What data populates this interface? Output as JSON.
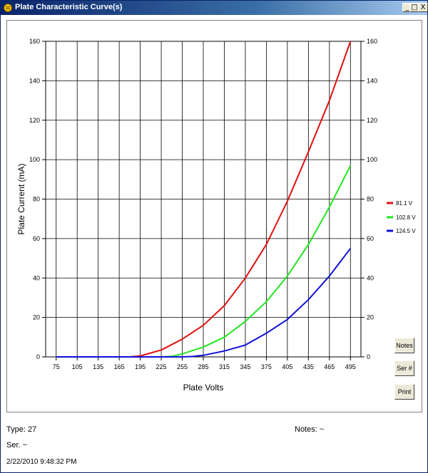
{
  "window": {
    "title": "Plate Characteristic Curve(s)",
    "controls": {
      "minimize": "_",
      "maximize": "□",
      "close": "X"
    }
  },
  "buttons": {
    "notes": "Notes",
    "serial": "Ser #",
    "print": "Print"
  },
  "info": {
    "type": "Type: 27",
    "serial": "Ser. ~",
    "timestamp": "2/22/2010  9:48:32 PM",
    "notes": "Notes: ~"
  },
  "chart_data": {
    "type": "line",
    "title": "",
    "xlabel": "Plate Volts",
    "ylabel": "Plate Current (mA)",
    "xlim": [
      60,
      510
    ],
    "ylim": [
      0,
      160
    ],
    "x_ticks": [
      75,
      105,
      135,
      165,
      195,
      225,
      255,
      285,
      315,
      345,
      375,
      405,
      435,
      465,
      495
    ],
    "y_ticks": [
      0,
      20,
      40,
      60,
      80,
      100,
      120,
      140,
      160
    ],
    "grid": true,
    "legend_position": "right",
    "series": [
      {
        "name": "81.1 V",
        "color": "#e01010",
        "x": [
          75,
          105,
          135,
          165,
          180,
          195,
          210,
          225,
          255,
          285,
          315,
          345,
          375,
          405,
          435,
          465,
          495
        ],
        "y": [
          0,
          0,
          0,
          0,
          0,
          0.5,
          2,
          3.5,
          9,
          16,
          26,
          40,
          57,
          79,
          104,
          130,
          160
        ]
      },
      {
        "name": "102.8 V",
        "color": "#22e622",
        "x": [
          75,
          105,
          135,
          165,
          195,
          225,
          240,
          255,
          285,
          315,
          345,
          375,
          405,
          435,
          465,
          495
        ],
        "y": [
          0,
          0,
          0,
          0,
          0,
          0,
          0.3,
          1.5,
          5,
          10,
          18,
          28,
          41,
          57,
          76,
          97
        ]
      },
      {
        "name": "124.5 V",
        "color": "#1010d8",
        "x": [
          75,
          105,
          135,
          165,
          195,
          225,
          255,
          270,
          285,
          315,
          345,
          375,
          405,
          435,
          465,
          495
        ],
        "y": [
          0,
          0,
          0,
          0,
          0,
          0,
          0,
          0.2,
          0.8,
          3,
          6,
          12,
          19,
          29,
          41,
          55
        ]
      }
    ]
  }
}
